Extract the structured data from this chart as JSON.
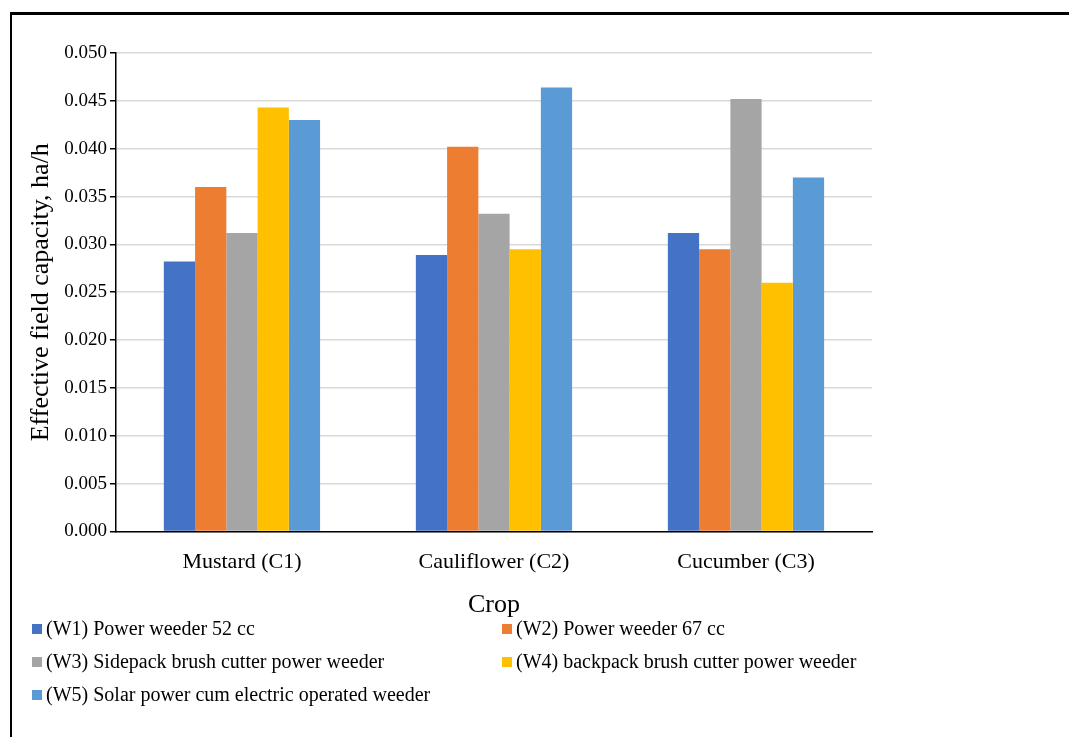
{
  "chart_data": {
    "type": "bar",
    "xlabel": "Crop",
    "ylabel": "Effective field capacity, ha/h",
    "categories": [
      "Mustard (C1)",
      "Cauliflower (C2)",
      "Cucumber (C3)"
    ],
    "series": [
      {
        "name": "(W1) Power weeder 52 cc",
        "color": "#4472c4",
        "values": [
          0.0282,
          0.0289,
          0.0312
        ]
      },
      {
        "name": "(W2) Power weeder 67 cc",
        "color": "#ed7d31",
        "values": [
          0.036,
          0.0402,
          0.0295
        ]
      },
      {
        "name": "(W3) Sidepack brush cutter power weeder",
        "color": "#a5a5a5",
        "values": [
          0.0312,
          0.0332,
          0.0452
        ]
      },
      {
        "name": "(W4) backpack brush cutter power weeder",
        "color": "#ffc000",
        "values": [
          0.0443,
          0.0295,
          0.026
        ]
      },
      {
        "name": "(W5) Solar power cum electric operated weeder",
        "color": "#5b9bd5",
        "values": [
          0.043,
          0.0464,
          0.037
        ]
      }
    ],
    "ylim": [
      0,
      0.05
    ],
    "yticks": [
      {
        "value": 0,
        "label": "0.000"
      },
      {
        "value": 0.005,
        "label": "0.005"
      },
      {
        "value": 0.01,
        "label": "0.010"
      },
      {
        "value": 0.015,
        "label": "0.015"
      },
      {
        "value": 0.02,
        "label": "0.020"
      },
      {
        "value": 0.025,
        "label": "0.025"
      },
      {
        "value": 0.03,
        "label": "0.030"
      },
      {
        "value": 0.035,
        "label": "0.035"
      },
      {
        "value": 0.04,
        "label": "0.040"
      },
      {
        "value": 0.045,
        "label": "0.045"
      },
      {
        "value": 0.05,
        "label": "0.050"
      }
    ],
    "grid": "y",
    "legend": "bottom"
  }
}
